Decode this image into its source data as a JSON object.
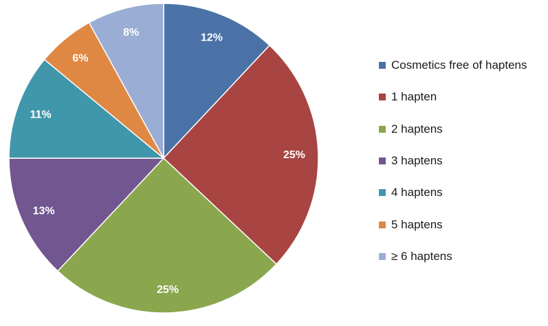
{
  "chart_data": {
    "type": "pie",
    "slices": [
      {
        "label": "Cosmetics free of haptens",
        "value": 12,
        "display": "12%",
        "color": "#4a72a6"
      },
      {
        "label": "1 hapten",
        "value": 25,
        "display": "25%",
        "color": "#a84442"
      },
      {
        "label": "2 haptens",
        "value": 25,
        "display": "25%",
        "color": "#8aa74e"
      },
      {
        "label": "3 haptens",
        "value": 13,
        "display": "13%",
        "color": "#71568f"
      },
      {
        "label": "4 haptens",
        "value": 11,
        "display": "11%",
        "color": "#4097ac"
      },
      {
        "label": "5 haptens",
        "value": 6,
        "display": "6%",
        "color": "#de8844"
      },
      {
        "label": "≥ 6 haptens",
        "value": 8,
        "display": "8%",
        "color": "#9aadd4"
      }
    ],
    "start_angle_deg": 0,
    "direction": "clockwise",
    "legend_position": "right"
  }
}
